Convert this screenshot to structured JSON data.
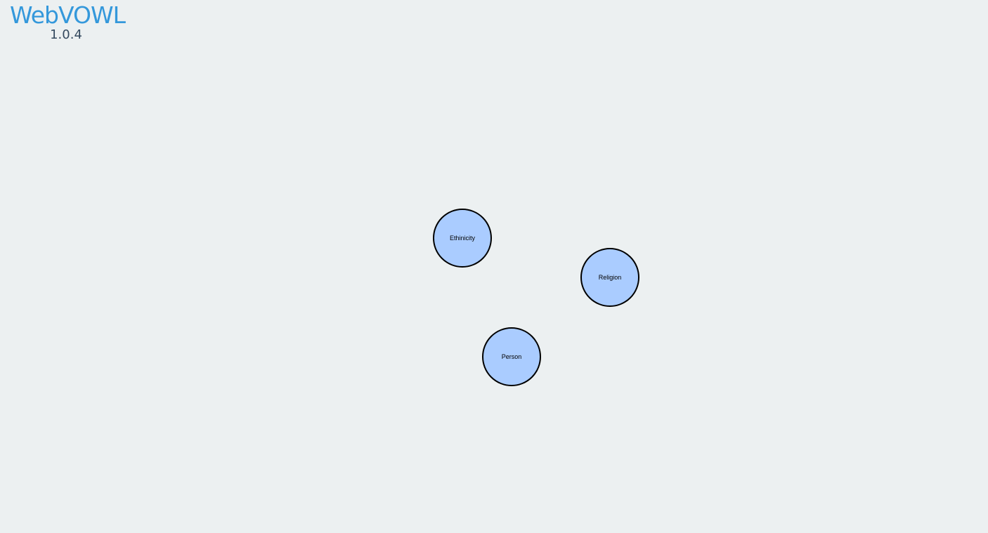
{
  "app": {
    "title": "WebVOWL",
    "version": "1.0.4"
  },
  "graph": {
    "nodes": [
      {
        "id": "ethinicity",
        "label": "Ethinicity"
      },
      {
        "id": "religion",
        "label": "Religion"
      },
      {
        "id": "person",
        "label": "Person"
      }
    ]
  },
  "colors": {
    "background": "#ecf0f1",
    "logo": "#3498db",
    "version": "#34495e",
    "class_fill": "#aaccff",
    "class_stroke": "#000000"
  }
}
